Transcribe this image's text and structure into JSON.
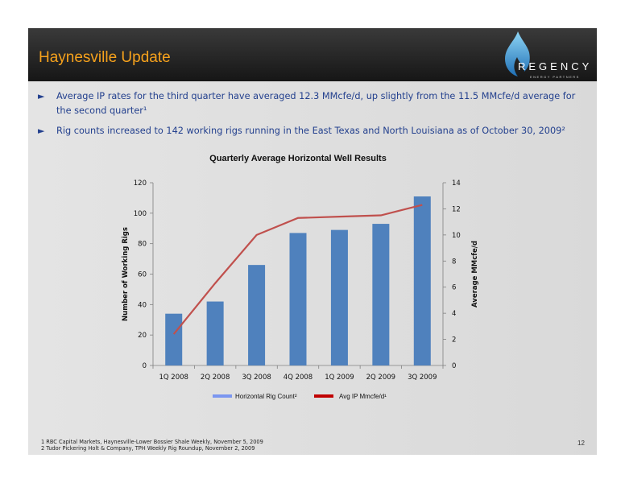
{
  "slide": {
    "title": "Haynesville Update",
    "logo": {
      "text": "REGENCY",
      "subtext": "ENERGY PARTNERS"
    },
    "bullets": [
      {
        "marker": "►",
        "text": "Average IP rates for the third quarter have averaged 12.3 MMcfe/d, up slightly from the 11.5 MMcfe/d average for the second quarter¹"
      },
      {
        "marker": "►",
        "text": "Rig counts increased to 142 working rigs running in the East Texas and North Louisiana as of October 30, 2009²"
      }
    ],
    "footnotes": [
      "1  RBC Capital Markets, Haynesville-Lower Bossier Shale Weekly, November 5, 2009",
      "2  Tudor Pickering Holt & Company, TPH Weekly Rig Roundup, November 2, 2009"
    ],
    "page_number": "12"
  },
  "chart_data": {
    "type": "bar",
    "title": "Quarterly Average Horizontal Well Results",
    "categories": [
      "1Q 2008",
      "2Q 2008",
      "3Q 2008",
      "4Q 2008",
      "1Q 2009",
      "2Q 2009",
      "3Q 2009"
    ],
    "series": [
      {
        "name": "Horizontal Rig Count²",
        "type": "bar",
        "axis": "left",
        "color": "#4f81bd",
        "values": [
          34,
          42,
          66,
          87,
          89,
          93,
          111
        ]
      },
      {
        "name": "Avg IP Mmcfe/d¹",
        "type": "line",
        "axis": "right",
        "color": "#c0504d",
        "values": [
          2.4,
          6.3,
          10.0,
          11.3,
          11.4,
          11.5,
          12.3
        ]
      }
    ],
    "ylabel": "Number of Working Rigs",
    "y2label": "Average MMcfe/d",
    "ylim": [
      0,
      120
    ],
    "y2lim": [
      0,
      14
    ],
    "yticks": [
      0,
      20,
      40,
      60,
      80,
      100,
      120
    ],
    "y2ticks": [
      0,
      2,
      4,
      6,
      8,
      10,
      12,
      14
    ],
    "legend": "bottom",
    "grid": false
  }
}
